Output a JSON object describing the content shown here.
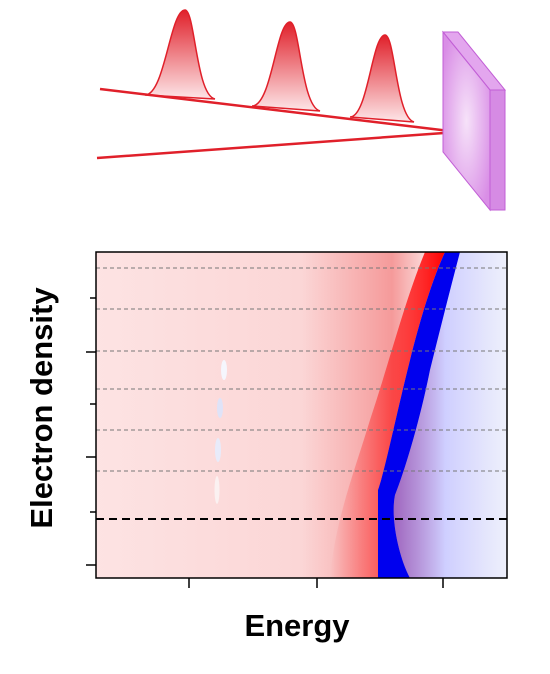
{
  "figure": {
    "x_label": "Energy",
    "y_label": "Electron density"
  }
}
